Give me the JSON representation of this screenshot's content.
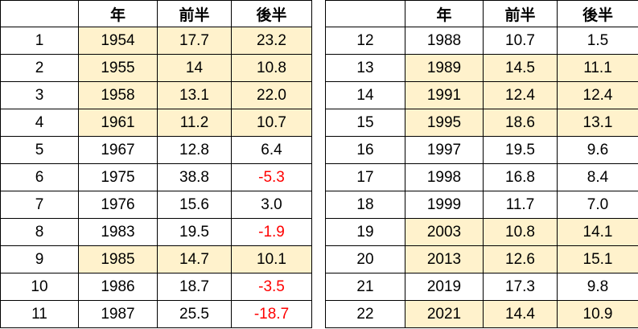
{
  "tables": [
    {
      "header": [
        "",
        "年",
        "前半",
        "後半"
      ],
      "rows": [
        [
          "1",
          "1954",
          "17.7",
          "23.2"
        ],
        [
          "2",
          "1955",
          "14",
          "10.8"
        ],
        [
          "3",
          "1958",
          "13.1",
          "22.0"
        ],
        [
          "4",
          "1961",
          "11.2",
          "10.7"
        ],
        [
          "5",
          "1967",
          "12.8",
          "6.4"
        ],
        [
          "6",
          "1975",
          "38.8",
          "-5.3"
        ],
        [
          "7",
          "1976",
          "15.6",
          "3.0"
        ],
        [
          "8",
          "1983",
          "19.5",
          "-1.9"
        ],
        [
          "9",
          "1985",
          "14.7",
          "10.1"
        ],
        [
          "10",
          "1986",
          "18.7",
          "-3.5"
        ],
        [
          "11",
          "1987",
          "25.5",
          "-18.7"
        ]
      ],
      "highlighted": [
        true,
        true,
        true,
        true,
        false,
        false,
        false,
        false,
        true,
        false,
        false
      ]
    },
    {
      "header": [
        "",
        "年",
        "前半",
        "後半"
      ],
      "rows": [
        [
          "12",
          "1988",
          "10.7",
          "1.5"
        ],
        [
          "13",
          "1989",
          "14.5",
          "11.1"
        ],
        [
          "14",
          "1991",
          "12.4",
          "12.4"
        ],
        [
          "15",
          "1995",
          "18.6",
          "13.1"
        ],
        [
          "16",
          "1997",
          "19.5",
          "9.6"
        ],
        [
          "17",
          "1998",
          "16.8",
          "8.4"
        ],
        [
          "18",
          "1999",
          "11.7",
          "7.0"
        ],
        [
          "19",
          "2003",
          "10.8",
          "14.1"
        ],
        [
          "20",
          "2013",
          "12.6",
          "15.1"
        ],
        [
          "21",
          "2019",
          "17.3",
          "9.8"
        ],
        [
          "22",
          "2021",
          "14.4",
          "10.9"
        ]
      ],
      "highlighted": [
        false,
        true,
        true,
        true,
        false,
        false,
        false,
        true,
        true,
        false,
        true
      ]
    }
  ],
  "highlight_color": "#fff2cc",
  "negative_color": "#ff0000"
}
